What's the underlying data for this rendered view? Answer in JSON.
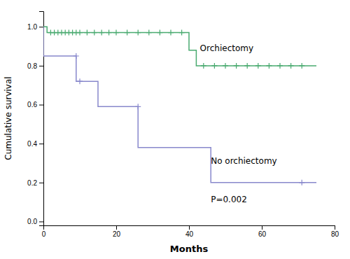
{
  "chart_data": {
    "type": "line",
    "xlabel": "Months",
    "ylabel": "Cumulative survival",
    "xlim": [
      0,
      80
    ],
    "ylim": [
      -0.02,
      1.08
    ],
    "xticks": [
      0,
      20,
      40,
      60,
      80
    ],
    "yticks": [
      {
        "value": 0.0,
        "label": "0.0"
      },
      0.2,
      0.4,
      0.6,
      0.8,
      {
        "value": 1.0,
        "label": "1.0"
      }
    ],
    "series": [
      {
        "type": "line",
        "line_style": "step",
        "color": "#4aaa70",
        "x": [
          0,
          1,
          1,
          40,
          40,
          42,
          42,
          75
        ],
        "values": [
          1.0,
          1.0,
          0.97,
          0.97,
          0.88,
          0.88,
          0.8,
          0.8
        ]
      },
      {
        "type": "scatter",
        "marker": "plus",
        "color": "#4aaa70",
        "x": [
          2,
          3,
          4,
          5,
          6,
          7,
          8,
          9,
          10,
          12,
          14,
          16,
          18,
          20,
          23,
          26,
          29,
          32,
          35,
          38,
          44,
          47,
          50,
          53,
          56,
          59,
          62,
          65,
          68,
          71
        ],
        "values": [
          0.97,
          0.97,
          0.97,
          0.97,
          0.97,
          0.97,
          0.97,
          0.97,
          0.97,
          0.97,
          0.97,
          0.97,
          0.97,
          0.97,
          0.97,
          0.97,
          0.97,
          0.97,
          0.97,
          0.97,
          0.8,
          0.8,
          0.8,
          0.8,
          0.8,
          0.8,
          0.8,
          0.8,
          0.8,
          0.8
        ]
      },
      {
        "type": "line",
        "line_style": "step",
        "color": "#8888cc",
        "x": [
          0,
          0,
          9,
          9,
          15,
          15,
          26,
          26,
          46,
          46,
          53,
          53,
          75
        ],
        "values": [
          1.0,
          0.85,
          0.85,
          0.72,
          0.72,
          0.59,
          0.59,
          0.38,
          0.38,
          0.2,
          0.2,
          0.2,
          0.2
        ]
      },
      {
        "type": "scatter",
        "marker": "plus",
        "color": "#8888cc",
        "x": [
          9,
          10,
          26,
          71
        ],
        "values": [
          0.85,
          0.72,
          0.59,
          0.2
        ]
      }
    ],
    "annotations": [
      {
        "text": "Orchiectomy",
        "x": 43,
        "y": 0.875
      },
      {
        "text": "No orchiectomy",
        "x": 46,
        "y": 0.295
      },
      {
        "text": "P=0.002",
        "x": 46,
        "y": 0.1
      }
    ]
  }
}
